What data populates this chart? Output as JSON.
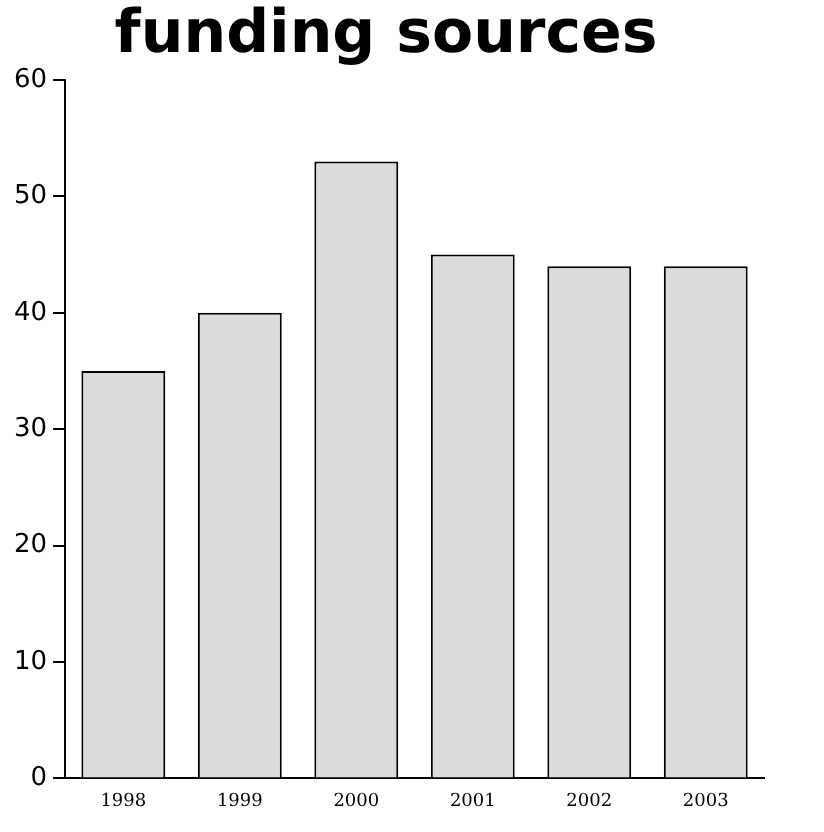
{
  "chart_data": {
    "type": "bar",
    "title": "funding sources",
    "categories": [
      "1998",
      "1999",
      "2000",
      "2001",
      "2002",
      "2003"
    ],
    "values": [
      35,
      40,
      53,
      45,
      44,
      44
    ],
    "color": "#dcdcdc",
    "ylim": [
      0,
      60
    ],
    "yticks": [
      0,
      10,
      20,
      30,
      40,
      50,
      60
    ],
    "grid": false,
    "legend": false
  }
}
